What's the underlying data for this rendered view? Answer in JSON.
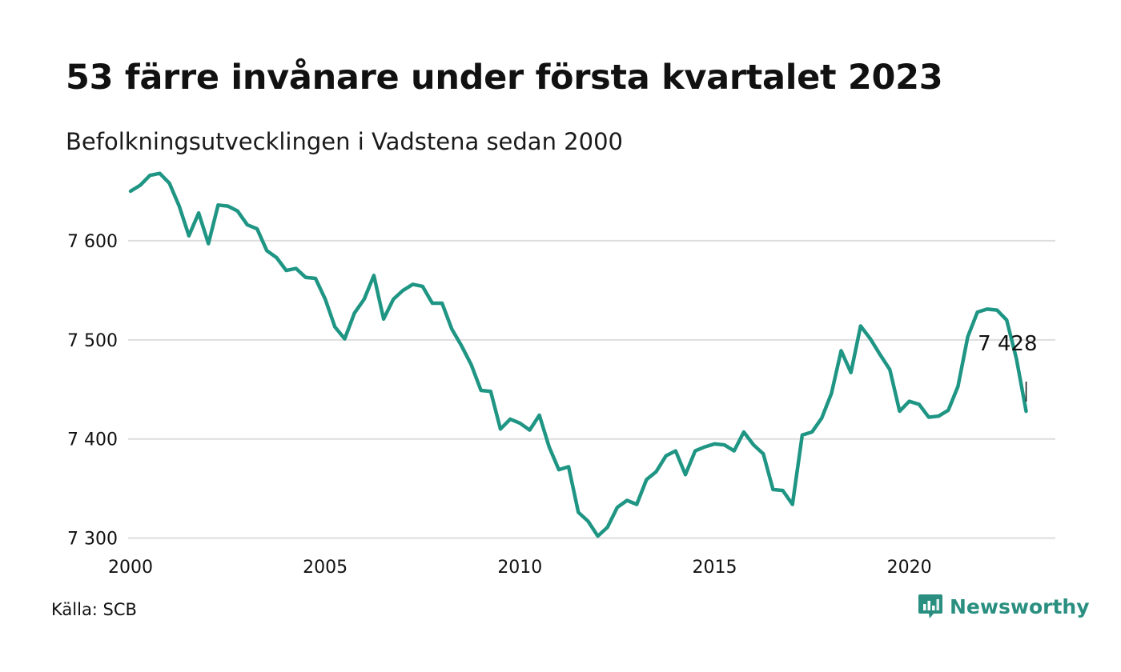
{
  "header": {
    "title": "53 färre invånare under första kvartalet 2023",
    "subtitle": "Befolkningsutvecklingen i Vadstena sedan 2000"
  },
  "footer": {
    "source": "Källa: SCB",
    "brand": "Newsworthy",
    "brand_icon": "newsworthy-logo-icon"
  },
  "colors": {
    "line": "#1f9584",
    "grid": "#dddddd",
    "brand": "#2a8f80"
  },
  "chart_data": {
    "type": "line",
    "title": "53 färre invånare under första kvartalet 2023",
    "subtitle": "Befolkningsutvecklingen i Vadstena sedan 2000",
    "xlabel": "",
    "ylabel": "",
    "xlim": [
      2000,
      2023.75
    ],
    "ylim": [
      7290,
      7675
    ],
    "x_ticks": [
      2000,
      2005,
      2010,
      2015,
      2020
    ],
    "x_tick_labels": [
      "2000",
      "2005",
      "2010",
      "2015",
      "2020"
    ],
    "y_ticks": [
      7300,
      7400,
      7500,
      7600
    ],
    "y_tick_labels": [
      "7 300",
      "7 400",
      "7 500",
      "7 600"
    ],
    "grid": "horizontal",
    "legend": "none",
    "annotation": {
      "text": "7 428",
      "x": 2023.0,
      "y": 7428
    },
    "series": [
      {
        "x": [
          2000.0,
          2000.25,
          2000.5,
          2000.75,
          2001.0,
          2001.25,
          2001.5,
          2001.75,
          2002.0,
          2002.25,
          2002.5,
          2002.75,
          2003.0,
          2003.25,
          2003.5,
          2003.75,
          2004.0,
          2004.25,
          2004.5,
          2004.75,
          2005.0,
          2005.25,
          2005.5,
          2005.75,
          2006.0,
          2006.25,
          2006.5,
          2006.75,
          2007.0,
          2007.25,
          2007.5,
          2007.75,
          2008.0,
          2008.25,
          2008.5,
          2008.75,
          2009.0,
          2009.25,
          2009.5,
          2009.75,
          2010.0,
          2010.25,
          2010.5,
          2010.75,
          2011.0,
          2011.25,
          2011.5,
          2011.75,
          2012.0,
          2012.25,
          2012.5,
          2012.75,
          2013.0,
          2013.25,
          2013.5,
          2013.75,
          2014.0,
          2014.25,
          2014.5,
          2014.75,
          2015.0,
          2015.25,
          2015.5,
          2015.75,
          2016.0,
          2016.25,
          2016.5,
          2016.75,
          2017.0,
          2017.25,
          2017.5,
          2017.75,
          2018.0,
          2018.25,
          2018.5,
          2018.75,
          2019.0,
          2019.25,
          2019.5,
          2019.75,
          2020.0,
          2020.25,
          2020.5,
          2020.75,
          2021.0,
          2021.25,
          2021.5,
          2021.75,
          2022.0,
          2022.25,
          2022.5,
          2022.75,
          2023.0
        ],
        "values": [
          7650,
          7656,
          7666,
          7668,
          7658,
          7635,
          7605,
          7628,
          7597,
          7636,
          7635,
          7630,
          7616,
          7612,
          7590,
          7583,
          7570,
          7572,
          7563,
          7562,
          7541,
          7513,
          7501,
          7527,
          7541,
          7565,
          7521,
          7541,
          7550,
          7556,
          7554,
          7537,
          7537,
          7511,
          7494,
          7475,
          7449,
          7448,
          7410,
          7420,
          7416,
          7409,
          7424,
          7392,
          7369,
          7372,
          7326,
          7317,
          7302,
          7311,
          7331,
          7338,
          7334,
          7359,
          7367,
          7383,
          7388,
          7364,
          7388,
          7392,
          7395,
          7394,
          7388,
          7407,
          7394,
          7385,
          7349,
          7348,
          7334,
          7404,
          7407,
          7421,
          7446,
          7489,
          7467,
          7514,
          7501,
          7485,
          7470,
          7428,
          7438,
          7435,
          7422,
          7423,
          7429,
          7453,
          7503,
          7528,
          7531,
          7530,
          7520,
          7481,
          7428
        ]
      }
    ]
  }
}
